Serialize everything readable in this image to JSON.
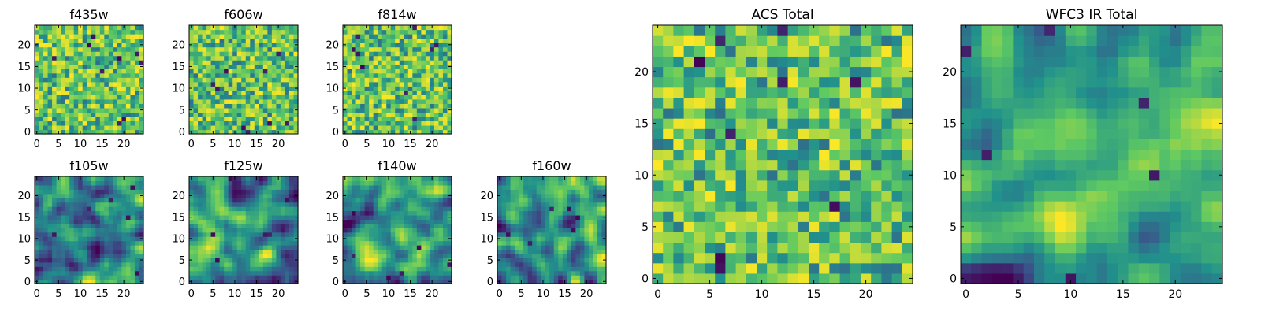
{
  "chart_data": [
    {
      "type": "heatmap",
      "title": "f435w",
      "seed": 11,
      "style": "noisy",
      "xticks": [
        "0",
        "5",
        "10",
        "15",
        "20"
      ],
      "yticks": [
        "0",
        "5",
        "10",
        "15",
        "20"
      ],
      "xlim": [
        0,
        24
      ],
      "ylim": [
        0,
        24
      ]
    },
    {
      "type": "heatmap",
      "title": "f606w",
      "seed": 23,
      "style": "noisy",
      "xticks": [
        "0",
        "5",
        "10",
        "15",
        "20"
      ],
      "yticks": [
        "0",
        "5",
        "10",
        "15",
        "20"
      ],
      "xlim": [
        0,
        24
      ],
      "ylim": [
        0,
        24
      ]
    },
    {
      "type": "heatmap",
      "title": "f814w",
      "seed": 37,
      "style": "noisy",
      "xticks": [
        "0",
        "5",
        "10",
        "15",
        "20"
      ],
      "yticks": [
        "0",
        "5",
        "10",
        "15",
        "20"
      ],
      "xlim": [
        0,
        24
      ],
      "ylim": [
        0,
        24
      ]
    },
    {
      "type": "heatmap",
      "title": "f105w",
      "seed": 41,
      "style": "smooth",
      "xticks": [
        "0",
        "5",
        "10",
        "15",
        "20"
      ],
      "yticks": [
        "0",
        "5",
        "10",
        "15",
        "20"
      ],
      "xlim": [
        0,
        24
      ],
      "ylim": [
        0,
        24
      ]
    },
    {
      "type": "heatmap",
      "title": "f125w",
      "seed": 53,
      "style": "smooth",
      "xticks": [
        "0",
        "5",
        "10",
        "15",
        "20"
      ],
      "yticks": [
        "0",
        "5",
        "10",
        "15",
        "20"
      ],
      "xlim": [
        0,
        24
      ],
      "ylim": [
        0,
        24
      ]
    },
    {
      "type": "heatmap",
      "title": "f140w",
      "seed": 67,
      "style": "smooth",
      "xticks": [
        "0",
        "5",
        "10",
        "15",
        "20"
      ],
      "yticks": [
        "0",
        "5",
        "10",
        "15",
        "20"
      ],
      "xlim": [
        0,
        24
      ],
      "ylim": [
        0,
        24
      ]
    },
    {
      "type": "heatmap",
      "title": "f160w",
      "seed": 79,
      "style": "smooth",
      "xticks": [
        "0",
        "5",
        "10",
        "15",
        "20"
      ],
      "yticks": [
        "0",
        "5",
        "10",
        "15",
        "20"
      ],
      "xlim": [
        0,
        24
      ],
      "ylim": [
        0,
        24
      ]
    },
    {
      "type": "heatmap",
      "title": "ACS Total",
      "seed": 83,
      "style": "noisy",
      "xticks": [
        "0",
        "5",
        "10",
        "15",
        "20"
      ],
      "yticks": [
        "0",
        "5",
        "10",
        "15",
        "20"
      ],
      "xlim": [
        0,
        24
      ],
      "ylim": [
        0,
        24
      ]
    },
    {
      "type": "heatmap",
      "title": "WFC3 IR Total",
      "seed": 97,
      "style": "smooth",
      "xticks": [
        "0",
        "5",
        "10",
        "15",
        "20"
      ],
      "yticks": [
        "0",
        "5",
        "10",
        "15",
        "20"
      ],
      "xlim": [
        0,
        24
      ],
      "ylim": [
        0,
        24
      ]
    }
  ],
  "colormap": [
    "#440154",
    "#3b528b",
    "#21918c",
    "#5ec962",
    "#fde725"
  ]
}
